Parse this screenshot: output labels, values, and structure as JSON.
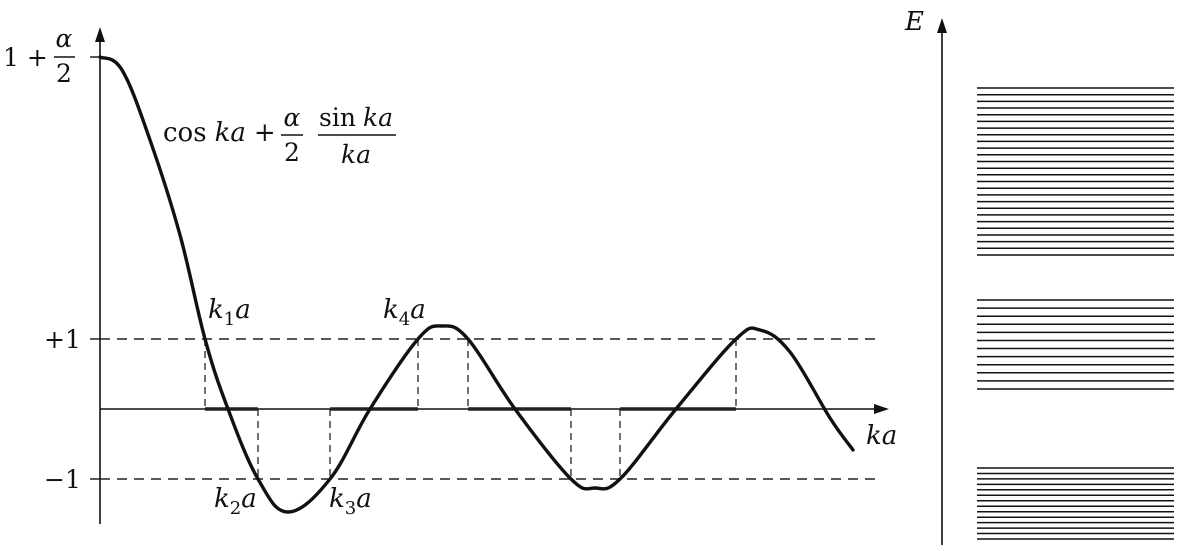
{
  "plot": {
    "y_tick_top": {
      "prefix": "1 +",
      "num": "α",
      "den": "2"
    },
    "y_tick_plus1": "+1",
    "y_tick_minus1": "−1",
    "x_axis_label": "ka",
    "function_label": {
      "cos": "cos",
      "ka1": "ka",
      "plus": "+",
      "frac1_num": "α",
      "frac1_den": "2",
      "frac2_num": "sin",
      "frac2_num_var": "ka",
      "frac2_den": "ka"
    },
    "k_labels": [
      {
        "k": "k",
        "sub": "1",
        "a": "a"
      },
      {
        "k": "k",
        "sub": "2",
        "a": "a"
      },
      {
        "k": "k",
        "sub": "3",
        "a": "a"
      },
      {
        "k": "k",
        "sub": "4",
        "a": "a"
      }
    ]
  },
  "levels": {
    "axis_label": "E",
    "bands": [
      {
        "line_count": 26
      },
      {
        "line_count": 12
      },
      {
        "line_count": 14
      }
    ]
  }
}
